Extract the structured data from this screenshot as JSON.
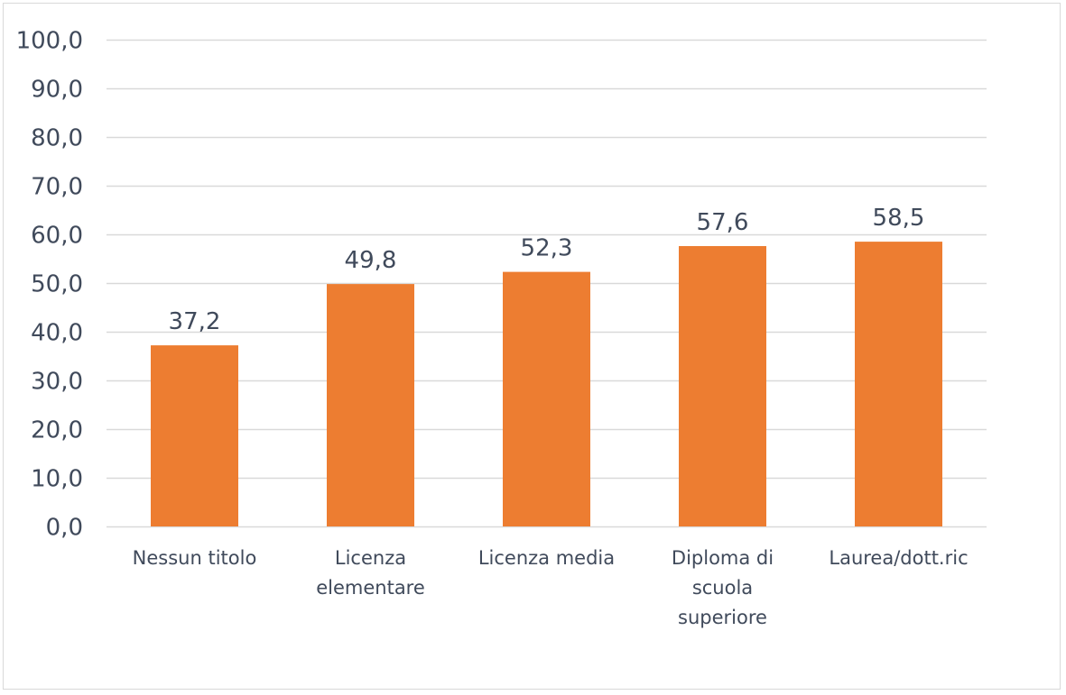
{
  "chart_data": {
    "type": "bar",
    "categories": [
      [
        "Nessun titolo"
      ],
      [
        "Licenza",
        "elementare"
      ],
      [
        "Licenza media"
      ],
      [
        "Diploma di",
        "scuola",
        "superiore"
      ],
      [
        "Laurea/dott.ric"
      ]
    ],
    "values": [
      37.2,
      49.8,
      52.3,
      57.6,
      58.5
    ],
    "data_labels": [
      "37,2",
      "49,8",
      "52,3",
      "57,6",
      "58,5"
    ],
    "y_ticks": [
      "0,0",
      "10,0",
      "20,0",
      "30,0",
      "40,0",
      "50,0",
      "60,0",
      "70,0",
      "80,0",
      "90,0",
      "100,0"
    ],
    "ylim": [
      0,
      100
    ],
    "title": "",
    "xlabel": "",
    "ylabel": "",
    "grid": true,
    "legend": "none",
    "colors": {
      "bar": "#ED7D31",
      "grid": "#d9d9d9",
      "text": "#404a5b",
      "frame": "#d9d9d9"
    }
  }
}
